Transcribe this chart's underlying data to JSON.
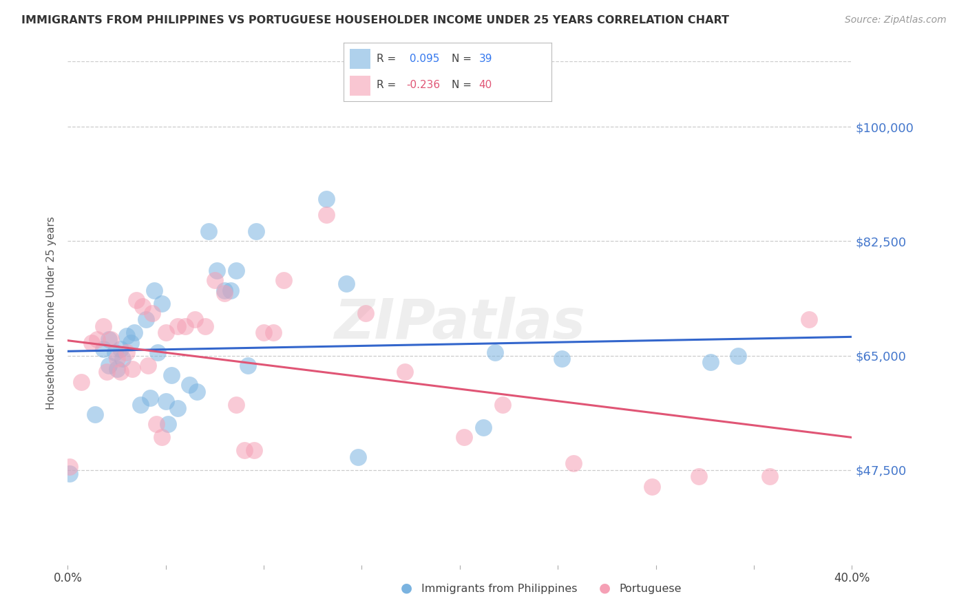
{
  "title": "IMMIGRANTS FROM PHILIPPINES VS PORTUGUESE HOUSEHOLDER INCOME UNDER 25 YEARS CORRELATION CHART",
  "source": "Source: ZipAtlas.com",
  "ylabel": "Householder Income Under 25 years",
  "legend_label1": "Immigrants from Philippines",
  "legend_label2": "Portuguese",
  "r1": 0.095,
  "n1": 39,
  "r2": -0.236,
  "n2": 40,
  "xlim": [
    0.0,
    0.4
  ],
  "ylim": [
    33000,
    110000
  ],
  "yticks": [
    47500,
    65000,
    82500,
    100000
  ],
  "ytick_labels": [
    "$47,500",
    "$65,000",
    "$82,500",
    "$100,000"
  ],
  "xticks": [
    0.0,
    0.05,
    0.1,
    0.15,
    0.2,
    0.25,
    0.3,
    0.35,
    0.4
  ],
  "xtick_labels": [
    "0.0%",
    "",
    "",
    "",
    "",
    "",
    "",
    "",
    "40.0%"
  ],
  "color1": "#7ab3e0",
  "color2": "#f5a0b5",
  "line_color1": "#3366cc",
  "line_color2": "#e05575",
  "background_color": "#ffffff",
  "watermark": "ZIPatlas",
  "philippines_x": [
    0.001,
    0.014,
    0.018,
    0.021,
    0.021,
    0.024,
    0.025,
    0.027,
    0.028,
    0.03,
    0.032,
    0.034,
    0.037,
    0.04,
    0.042,
    0.044,
    0.046,
    0.048,
    0.05,
    0.051,
    0.053,
    0.056,
    0.062,
    0.066,
    0.072,
    0.076,
    0.08,
    0.083,
    0.086,
    0.092,
    0.096,
    0.132,
    0.142,
    0.148,
    0.212,
    0.218,
    0.252,
    0.328,
    0.342
  ],
  "philippines_y": [
    47000,
    56000,
    66000,
    67500,
    63500,
    65500,
    63000,
    66000,
    64500,
    68000,
    67000,
    68500,
    57500,
    70500,
    58500,
    75000,
    65500,
    73000,
    58000,
    54500,
    62000,
    57000,
    60500,
    59500,
    84000,
    78000,
    75000,
    75000,
    78000,
    63500,
    84000,
    89000,
    76000,
    49500,
    54000,
    65500,
    64500,
    64000,
    65000
  ],
  "portuguese_x": [
    0.001,
    0.007,
    0.012,
    0.015,
    0.018,
    0.02,
    0.022,
    0.025,
    0.027,
    0.03,
    0.033,
    0.035,
    0.038,
    0.041,
    0.043,
    0.045,
    0.048,
    0.05,
    0.056,
    0.06,
    0.065,
    0.07,
    0.075,
    0.08,
    0.086,
    0.09,
    0.095,
    0.1,
    0.105,
    0.11,
    0.132,
    0.152,
    0.172,
    0.202,
    0.222,
    0.258,
    0.298,
    0.322,
    0.358,
    0.378
  ],
  "portuguese_y": [
    48000,
    61000,
    67000,
    67500,
    69500,
    62500,
    67500,
    64500,
    62500,
    65500,
    63000,
    73500,
    72500,
    63500,
    71500,
    54500,
    52500,
    68500,
    69500,
    69500,
    70500,
    69500,
    76500,
    74500,
    57500,
    50500,
    50500,
    68500,
    68500,
    76500,
    86500,
    71500,
    62500,
    52500,
    57500,
    48500,
    45000,
    46500,
    46500,
    70500
  ]
}
